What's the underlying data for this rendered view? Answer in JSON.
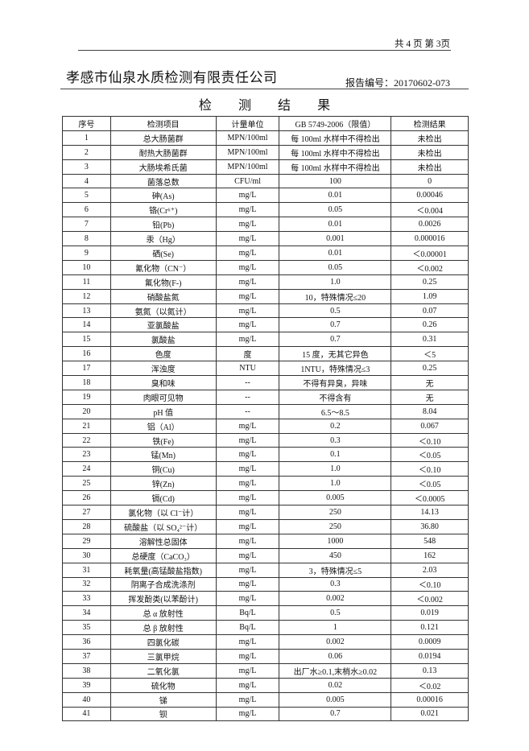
{
  "header": {
    "page_info": "共 4 页  第 3页",
    "company": "孝感市仙泉水质检测有限责任公司",
    "report_no": "报告编号：20170602-073"
  },
  "title": "检 测 结 果",
  "table": {
    "columns": [
      "序号",
      "检测项目",
      "计量单位",
      "GB 5749-2006（限值）",
      "检测结果"
    ],
    "rows": [
      [
        "1",
        "总大肠菌群",
        "MPN/100ml",
        "每 100ml 水样中不得检出",
        "未检出"
      ],
      [
        "2",
        "耐热大肠菌群",
        "MPN/100ml",
        "每 100ml 水样中不得检出",
        "未检出"
      ],
      [
        "3",
        "大肠埃希氏菌",
        "MPN/100ml",
        "每 100ml 水样中不得检出",
        "未检出"
      ],
      [
        "4",
        "菌落总数",
        "CFU/ml",
        "100",
        "0"
      ],
      [
        "5",
        "砷(As)",
        "mg/L",
        "0.01",
        "0.00046"
      ],
      [
        "6",
        "铬(Cr⁶⁺)",
        "mg/L",
        "0.05",
        "＜0.004"
      ],
      [
        "7",
        "铅(Pb)",
        "mg/L",
        "0.01",
        "0.0026"
      ],
      [
        "8",
        "汞（Hg）",
        "mg/L",
        "0.001",
        "0.000016"
      ],
      [
        "9",
        "硒(Se)",
        "mg/L",
        "0.01",
        "＜0.00001"
      ],
      [
        "10",
        "氰化物（CN⁻）",
        "mg/L",
        "0.05",
        "＜0.002"
      ],
      [
        "11",
        "氟化物(F-)",
        "mg/L",
        "1.0",
        "0.25"
      ],
      [
        "12",
        "硝酸盐氮",
        "mg/L",
        "10，特殊情况≤20",
        "1.09"
      ],
      [
        "13",
        "氨氮（以氮计）",
        "mg/L",
        "0.5",
        "0.07"
      ],
      [
        "14",
        "亚氯酸盐",
        "mg/L",
        "0.7",
        "0.26"
      ],
      [
        "15",
        "氯酸盐",
        "mg/L",
        "0.7",
        "0.31"
      ],
      [
        "16",
        "色度",
        "度",
        "15 度，无其它异色",
        "＜5"
      ],
      [
        "17",
        "浑浊度",
        "NTU",
        "1NTU，特殊情况≤3",
        "0.25"
      ],
      [
        "18",
        "臭和味",
        "--",
        "不得有异臭，异味",
        "无"
      ],
      [
        "19",
        "肉眼可见物",
        "--",
        "不得含有",
        "无"
      ],
      [
        "20",
        "pH 值",
        "--",
        "6.5～8.5",
        "8.04"
      ],
      [
        "21",
        "铝（Al）",
        "mg/L",
        "0.2",
        "0.067"
      ],
      [
        "22",
        "铁(Fe)",
        "mg/L",
        "0.3",
        "＜0.10"
      ],
      [
        "23",
        "锰(Mn)",
        "mg/L",
        "0.1",
        "＜0.05"
      ],
      [
        "24",
        "铜(Cu)",
        "mg/L",
        "1.0",
        "＜0.10"
      ],
      [
        "25",
        "锌(Zn)",
        "mg/L",
        "1.0",
        "＜0.05"
      ],
      [
        "26",
        "镉(Cd)",
        "mg/L",
        "0.005",
        "＜0.0005"
      ],
      [
        "27",
        "氯化物（以 Cl⁻计）",
        "mg/L",
        "250",
        "14.13"
      ],
      [
        "28",
        "硫酸盐（以 SO₄²⁻计）",
        "mg/L",
        "250",
        "36.80"
      ],
      [
        "29",
        "溶解性总固体",
        "mg/L",
        "1000",
        "548"
      ],
      [
        "30",
        "总硬度（CaCO₃）",
        "mg/L",
        "450",
        "162"
      ],
      [
        "31",
        "耗氧量(高锰酸盐指数)",
        "mg/L",
        "3，特殊情况≤5",
        "2.03"
      ],
      [
        "32",
        "阴离子合成洗涤剂",
        "mg/L",
        "0.3",
        "＜0.10"
      ],
      [
        "33",
        "挥发酚类(以苯酚计)",
        "mg/L",
        "0.002",
        "＜0.002"
      ],
      [
        "34",
        "总 α 放射性",
        "Bq/L",
        "0.5",
        "0.019"
      ],
      [
        "35",
        "总 β 放射性",
        "Bq/L",
        "1",
        "0.121"
      ],
      [
        "36",
        "四氯化碳",
        "mg/L",
        "0.002",
        "0.0009"
      ],
      [
        "37",
        "三氯甲烷",
        "mg/L",
        "0.06",
        "0.0194"
      ],
      [
        "38",
        "二氧化氯",
        "mg/L",
        "出厂水≥0.1,末梢水≥0.02",
        "0.13"
      ],
      [
        "39",
        "硫化物",
        "mg/L",
        "0.02",
        "＜0.02"
      ],
      [
        "40",
        "锑",
        "mg/L",
        "0.005",
        "0.00016"
      ],
      [
        "41",
        "钡",
        "mg/L",
        "0.7",
        "0.021"
      ]
    ]
  }
}
